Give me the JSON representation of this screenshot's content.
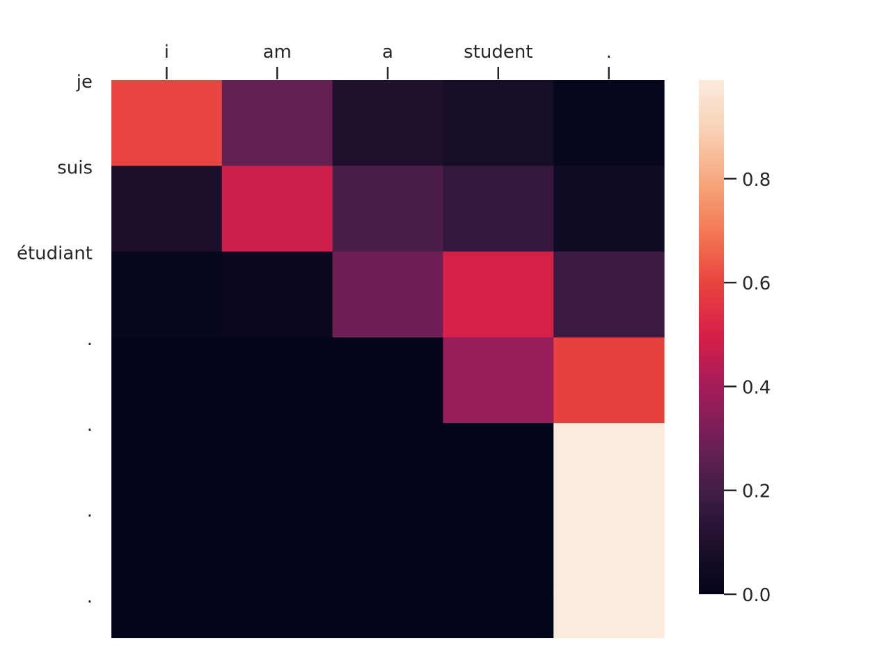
{
  "chart_data": {
    "type": "heatmap",
    "x_labels": [
      "i",
      "am",
      "a",
      "student",
      "."
    ],
    "y_labels": [
      "je",
      "suis",
      "étudiant",
      ".",
      ".",
      ".",
      "."
    ],
    "values": [
      [
        0.6,
        0.27,
        0.1,
        0.07,
        0.01
      ],
      [
        0.09,
        0.48,
        0.22,
        0.16,
        0.05
      ],
      [
        0.01,
        0.03,
        0.29,
        0.5,
        0.18
      ],
      [
        0.0,
        0.0,
        0.0,
        0.37,
        0.59
      ],
      [
        0.0,
        0.0,
        0.0,
        0.0,
        0.99
      ],
      [
        0.0,
        0.0,
        0.0,
        0.0,
        0.99
      ],
      [
        0.0,
        0.0,
        0.0,
        0.0,
        0.99
      ]
    ],
    "row_visible_fraction": [
      1,
      1,
      1,
      1,
      1,
      1,
      0.5
    ],
    "x_axis_position": "top",
    "colormap": "rocket",
    "colorbar": {
      "range": [
        0,
        0.99
      ],
      "ticks": [
        0.0,
        0.2,
        0.4,
        0.6,
        0.8
      ],
      "tick_labels": [
        "0.0",
        "0.2",
        "0.4",
        "0.6",
        "0.8"
      ]
    },
    "grid": false
  }
}
